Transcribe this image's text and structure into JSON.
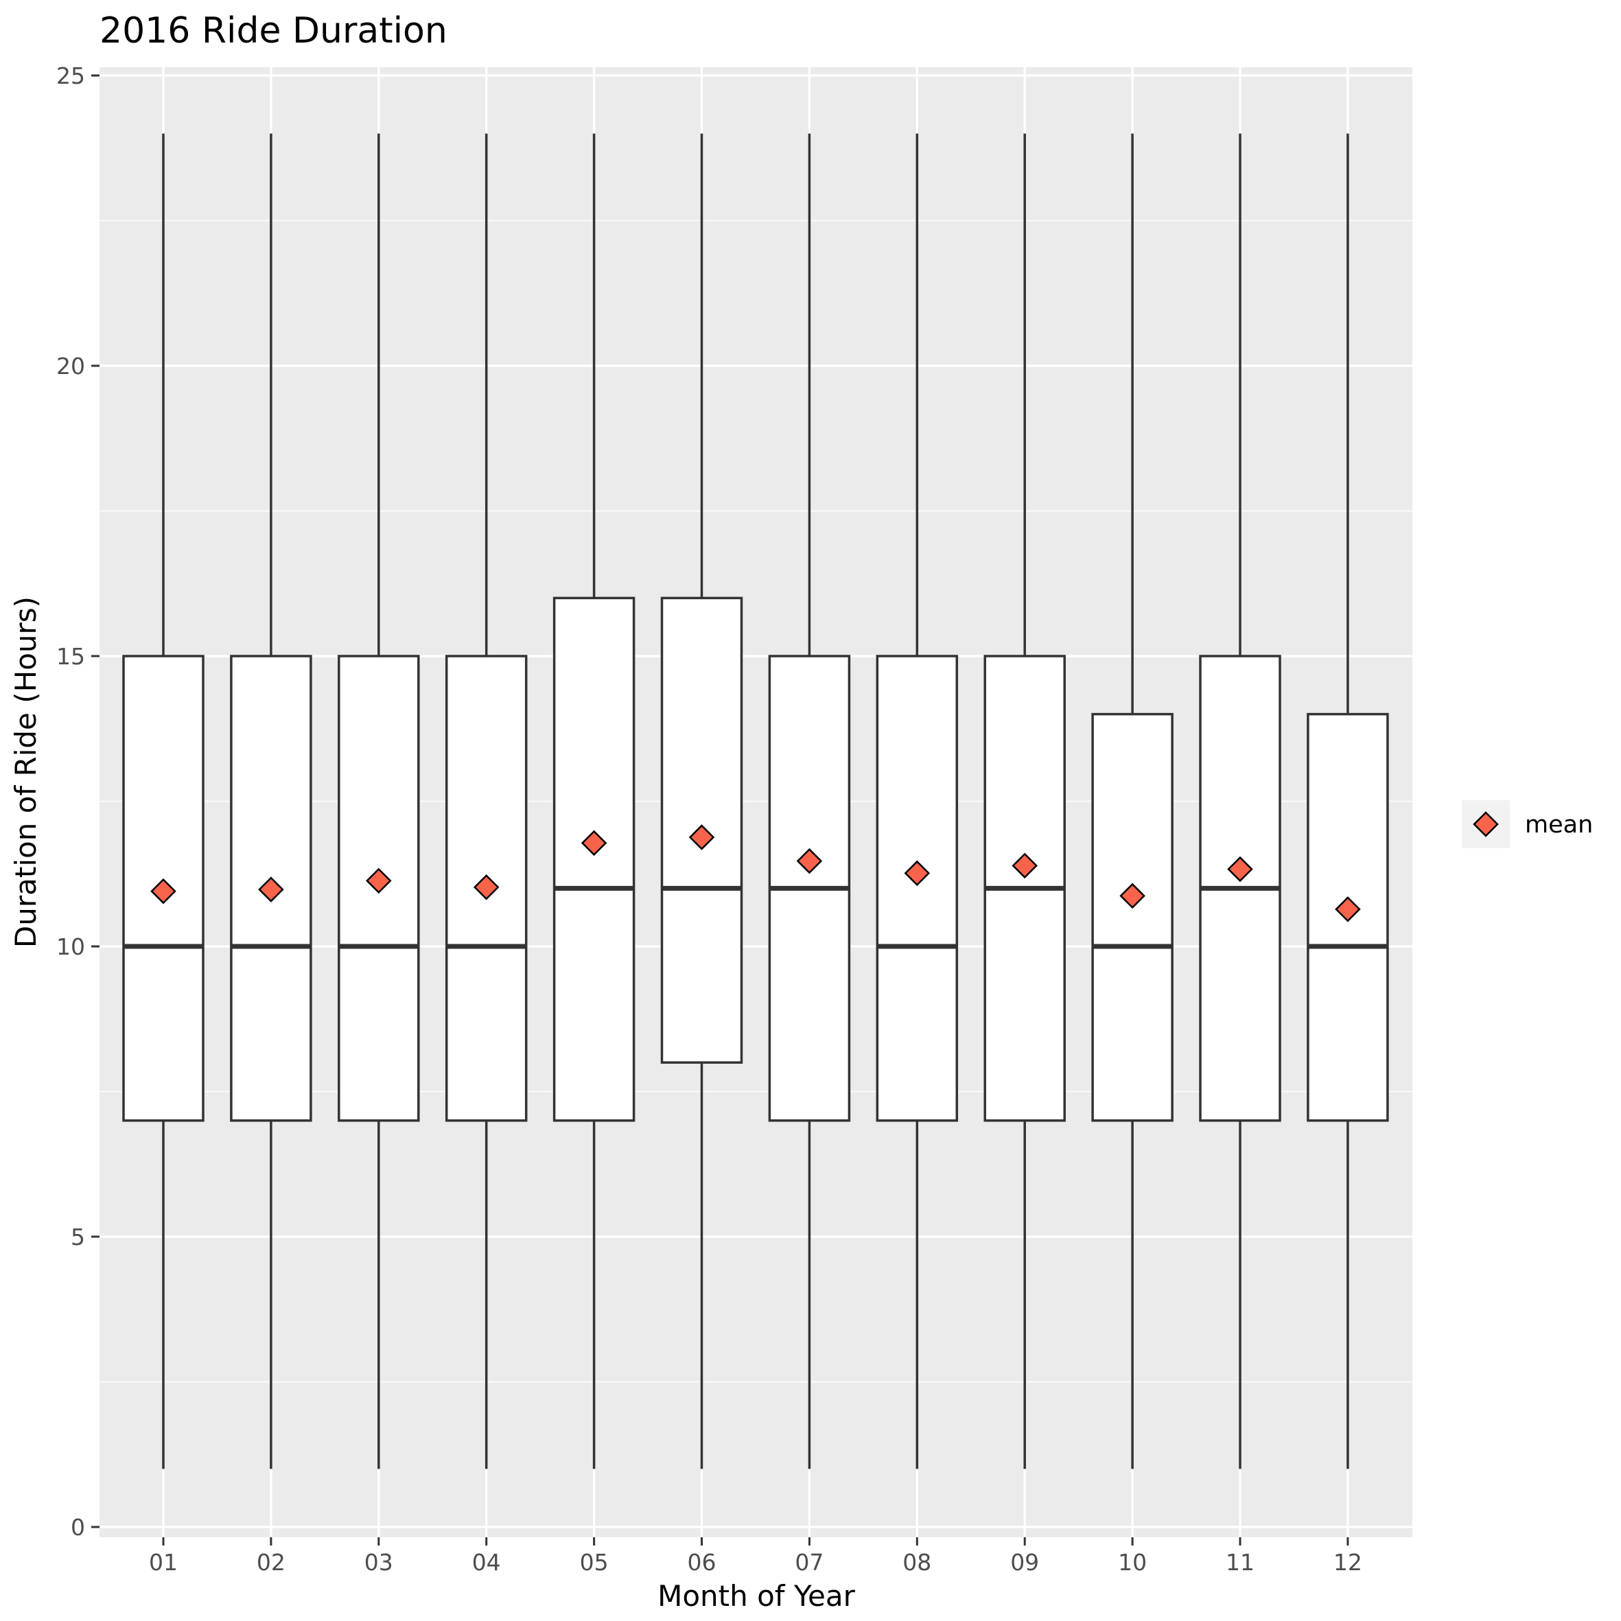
{
  "chart_data": {
    "type": "boxplot",
    "title": "2016 Ride Duration",
    "xlabel": "Month of Year",
    "ylabel": "Duration of Ride (Hours)",
    "categories": [
      "01",
      "02",
      "03",
      "04",
      "05",
      "06",
      "07",
      "08",
      "09",
      "10",
      "11",
      "12"
    ],
    "ylim": [
      0,
      25
    ],
    "yticks": [
      0,
      5,
      10,
      15,
      20,
      25
    ],
    "grid": true,
    "legend": {
      "position": "right",
      "label": "mean"
    },
    "colors": {
      "panel": "#ebebeb",
      "grid": "#ffffff",
      "box_fill": "#ffffff",
      "box_line": "#333333",
      "mean_fill": "#f8644b",
      "mean_line": "#000000",
      "legend_key_bg": "#f2f2f2"
    },
    "boxes": [
      {
        "month": "01",
        "min": 1,
        "q1": 7,
        "median": 10,
        "q3": 15,
        "max": 24,
        "mean": 10.95
      },
      {
        "month": "02",
        "min": 1,
        "q1": 7,
        "median": 10,
        "q3": 15,
        "max": 24,
        "mean": 10.98
      },
      {
        "month": "03",
        "min": 1,
        "q1": 7,
        "median": 10,
        "q3": 15,
        "max": 24,
        "mean": 11.13
      },
      {
        "month": "04",
        "min": 1,
        "q1": 7,
        "median": 10,
        "q3": 15,
        "max": 24,
        "mean": 11.02
      },
      {
        "month": "05",
        "min": 1,
        "q1": 7,
        "median": 11,
        "q3": 16,
        "max": 24,
        "mean": 11.78
      },
      {
        "month": "06",
        "min": 1,
        "q1": 8,
        "median": 11,
        "q3": 16,
        "max": 24,
        "mean": 11.88
      },
      {
        "month": "07",
        "min": 1,
        "q1": 7,
        "median": 11,
        "q3": 15,
        "max": 24,
        "mean": 11.47
      },
      {
        "month": "08",
        "min": 1,
        "q1": 7,
        "median": 10,
        "q3": 15,
        "max": 24,
        "mean": 11.26
      },
      {
        "month": "09",
        "min": 1,
        "q1": 7,
        "median": 11,
        "q3": 15,
        "max": 24,
        "mean": 11.39
      },
      {
        "month": "10",
        "min": 1,
        "q1": 7,
        "median": 10,
        "q3": 14,
        "max": 24,
        "mean": 10.87
      },
      {
        "month": "11",
        "min": 1,
        "q1": 7,
        "median": 11,
        "q3": 15,
        "max": 24,
        "mean": 11.33
      },
      {
        "month": "12",
        "min": 1,
        "q1": 7,
        "median": 10,
        "q3": 14,
        "max": 24,
        "mean": 10.64
      }
    ]
  }
}
